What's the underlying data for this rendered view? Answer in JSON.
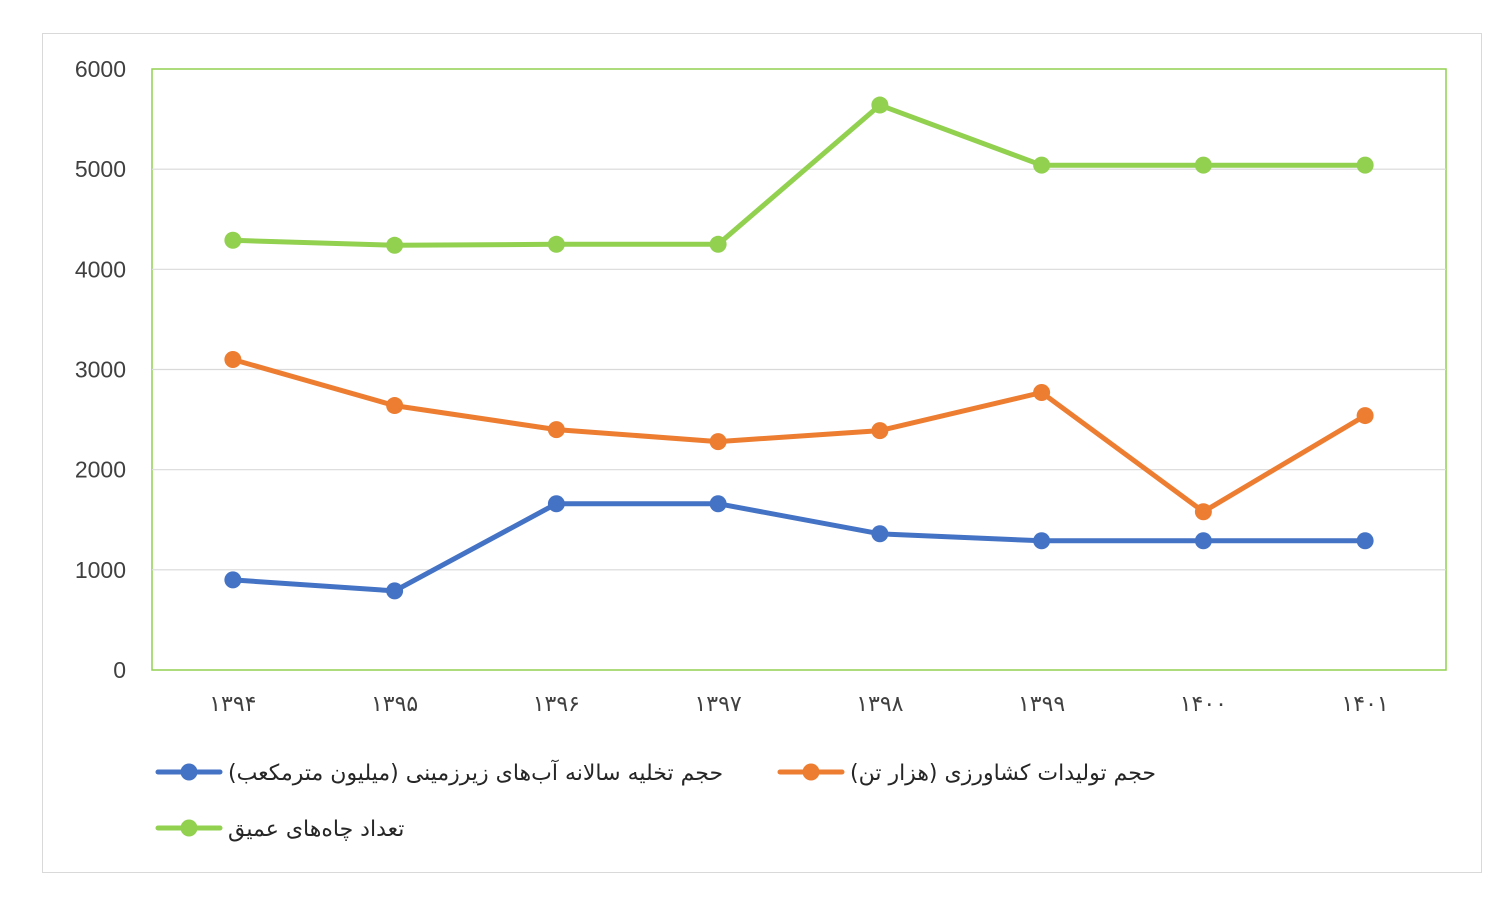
{
  "chart_data": {
    "type": "line",
    "title": "",
    "xlabel": "",
    "ylabel": "",
    "categories": [
      "۱۳۹۴",
      "۱۳۹۵",
      "۱۳۹۶",
      "۱۳۹۷",
      "۱۳۹۸",
      "۱۳۹۹",
      "۱۴۰۰",
      "۱۴۰۱"
    ],
    "ylim": [
      0,
      6000
    ],
    "yticks": [
      "0",
      "1000",
      "2000",
      "3000",
      "4000",
      "5000",
      "6000"
    ],
    "grid": true,
    "legend_position": "bottom",
    "series": [
      {
        "name": "حجم تخلیه سالانه آب‌های زیرزمینی (میلیون مترمکعب)",
        "color": "#4472c4",
        "values": [
          900,
          790,
          1660,
          1660,
          1360,
          1290,
          1290,
          1290
        ]
      },
      {
        "name": "حجم تولیدات کشاورزی (هزار تن)",
        "color": "#ed7d31",
        "values": [
          3100,
          2640,
          2400,
          2280,
          2390,
          2770,
          1580,
          2540
        ]
      },
      {
        "name": "تعداد چاه‌های عمیق",
        "color": "#92d050",
        "values": [
          4290,
          4240,
          4250,
          4250,
          5640,
          5040,
          5040,
          5040
        ]
      }
    ]
  }
}
